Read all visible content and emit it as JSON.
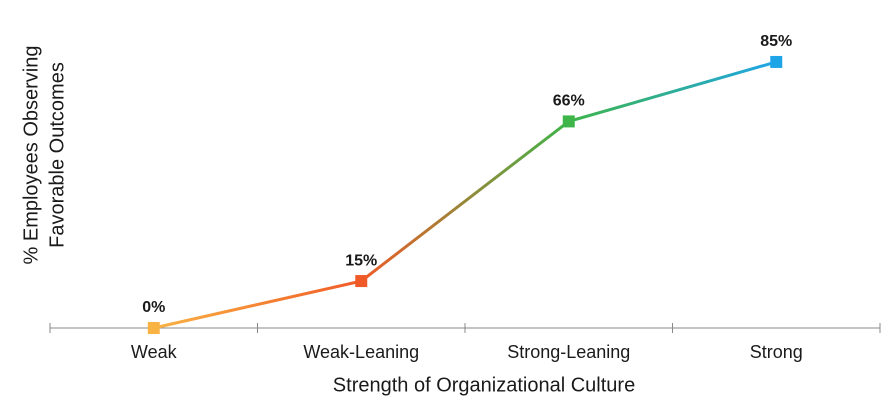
{
  "chart_data": {
    "type": "line",
    "x_label": "Strength of Organizational Culture",
    "y_label": [
      "% Employees Observing",
      "Favorable Outcomes"
    ],
    "categories": [
      "Weak",
      "Weak-Leaning",
      "Strong-Leaning",
      "Strong"
    ],
    "values": [
      0,
      15,
      66,
      85
    ],
    "value_labels": [
      "0%",
      "15%",
      "66%",
      "85%"
    ],
    "colors": [
      "#f9b343",
      "#f05a28",
      "#3db549",
      "#1ea5e8"
    ],
    "ylim": [
      0,
      100
    ]
  }
}
